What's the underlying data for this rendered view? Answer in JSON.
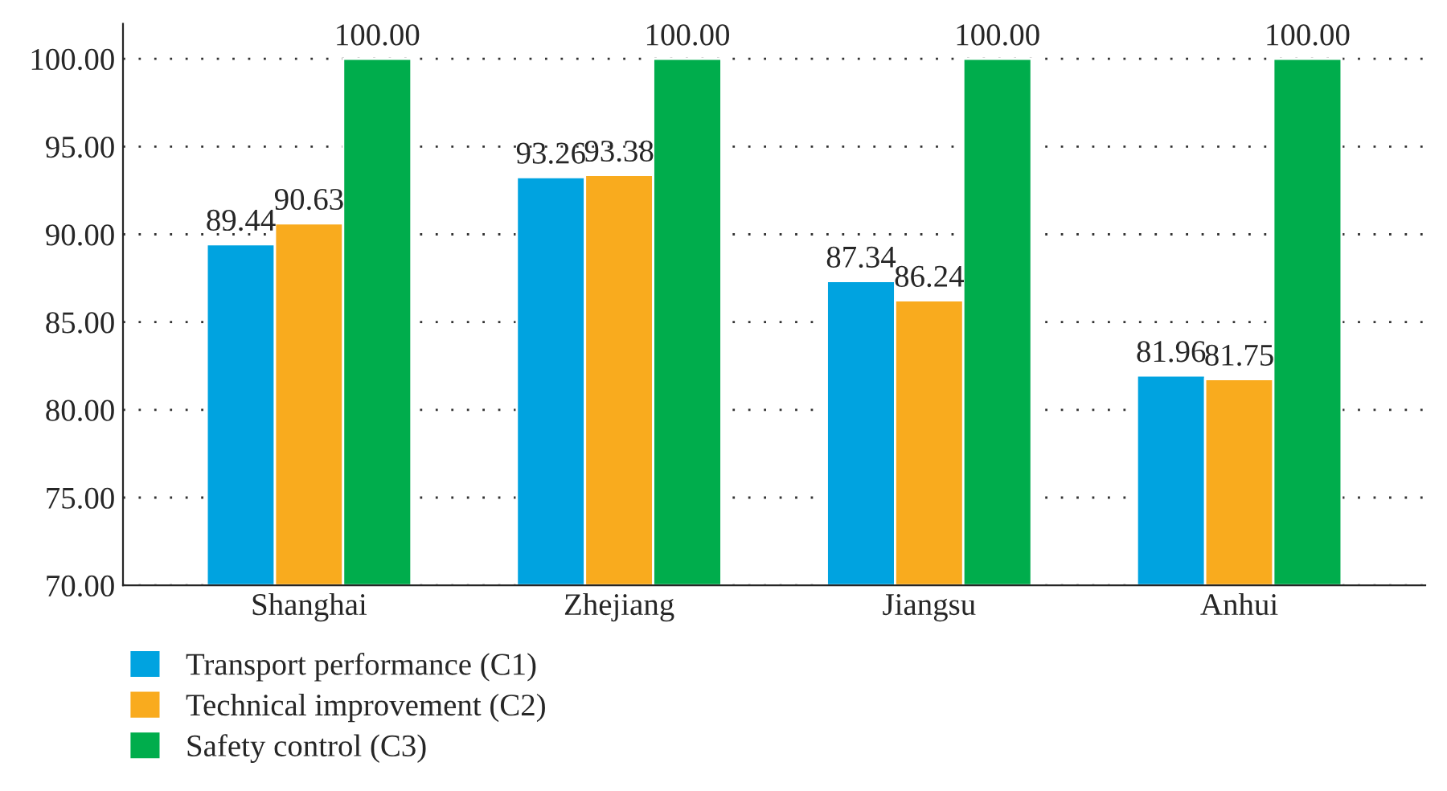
{
  "chart_data": {
    "type": "bar",
    "categories": [
      "Shanghai",
      "Zhejiang",
      "Jiangsu",
      "Anhui"
    ],
    "series": [
      {
        "name": "Transport performance (C1)",
        "color": "#00a3e0",
        "values": [
          89.44,
          93.26,
          87.34,
          81.96
        ],
        "value_labels": [
          "89.44",
          "93.26",
          "87.34",
          "81.96"
        ]
      },
      {
        "name": "Technical improvement (C2)",
        "color": "#f9ab1e",
        "values": [
          90.63,
          93.38,
          86.24,
          81.75
        ],
        "value_labels": [
          "90.63",
          "93.38",
          "86.24",
          "81.75"
        ]
      },
      {
        "name": "Safety control (C3)",
        "color": "#00ad4c",
        "values": [
          100,
          100,
          100,
          100
        ],
        "value_labels": [
          "100.00",
          "100.00",
          "100.00",
          "100.00"
        ]
      }
    ],
    "ylim": [
      70,
      102
    ],
    "yticks": [
      {
        "value": 70,
        "label": "70.00"
      },
      {
        "value": 75,
        "label": "75.00"
      },
      {
        "value": 80,
        "label": "80.00"
      },
      {
        "value": 85,
        "label": "85.00"
      },
      {
        "value": 90,
        "label": "90.00"
      },
      {
        "value": 95,
        "label": "95.00"
      },
      {
        "value": 100,
        "label": "100.00"
      }
    ],
    "grid": "y",
    "legend": "bottom left"
  }
}
